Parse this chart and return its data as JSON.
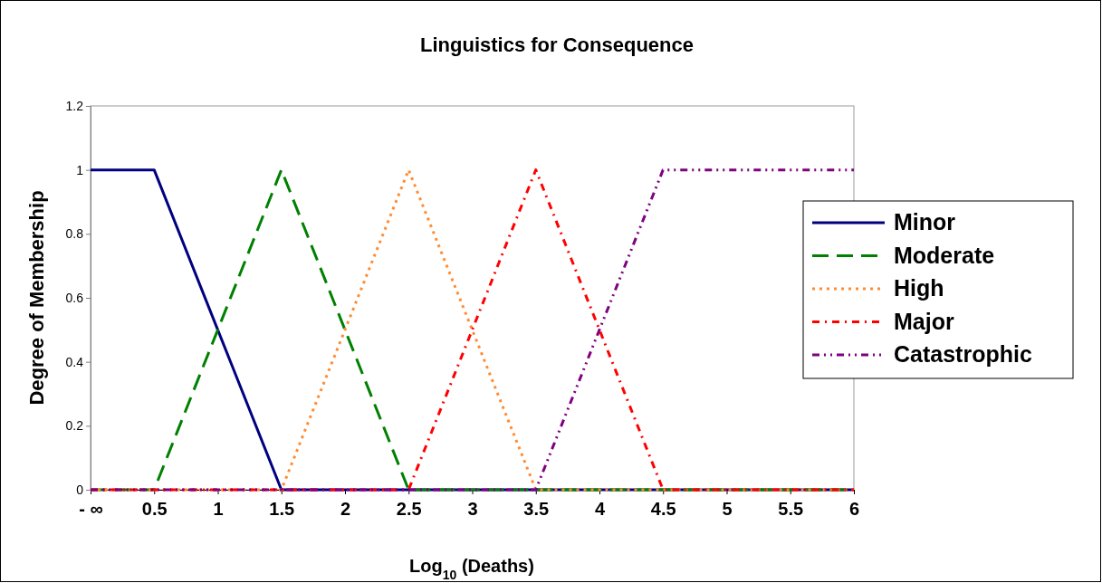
{
  "chart_data": {
    "type": "line",
    "title": "Linguistics for Consequence",
    "xlabel": "Log$_{10}$ (Deaths)",
    "ylabel": "Degree of Membership",
    "categories": [
      "- ∞",
      "0.5",
      "1",
      "1.5",
      "2",
      "2.5",
      "3",
      "3.5",
      "4",
      "4.5",
      "5",
      "5.5",
      "6"
    ],
    "ylim": [
      0,
      1.2
    ],
    "yticks": [
      0,
      0.2,
      0.4,
      0.6,
      0.8,
      1,
      1.2
    ],
    "grid": false,
    "legend": "right",
    "marker": "none",
    "series": [
      {
        "name": "Minor",
        "color": "#000080",
        "line_style": "solid",
        "values": [
          1,
          1,
          0.5,
          0,
          0,
          0,
          0,
          0,
          0,
          0,
          0,
          0,
          0
        ]
      },
      {
        "name": "Moderate",
        "color": "#008000",
        "line_style": "dashed",
        "values": [
          0,
          0,
          0.5,
          1,
          0.5,
          0,
          0,
          0,
          0,
          0,
          0,
          0,
          0
        ]
      },
      {
        "name": "High",
        "color": "#ff8c33",
        "line_style": "dotted",
        "values": [
          0,
          0,
          0,
          0,
          0.5,
          1,
          0.5,
          0,
          0,
          0,
          0,
          0,
          0
        ]
      },
      {
        "name": "Major",
        "color": "#ff0000",
        "line_style": "dashed",
        "values": [
          0,
          0,
          0,
          0,
          0,
          0,
          0.5,
          1,
          0.5,
          0,
          0,
          0,
          0
        ]
      },
      {
        "name": "Catastrophic",
        "color": "#800080",
        "line_style": "dashed",
        "values": [
          0,
          0,
          0,
          0,
          0,
          0,
          0,
          0,
          0.5,
          1,
          1,
          1,
          1
        ]
      }
    ]
  }
}
